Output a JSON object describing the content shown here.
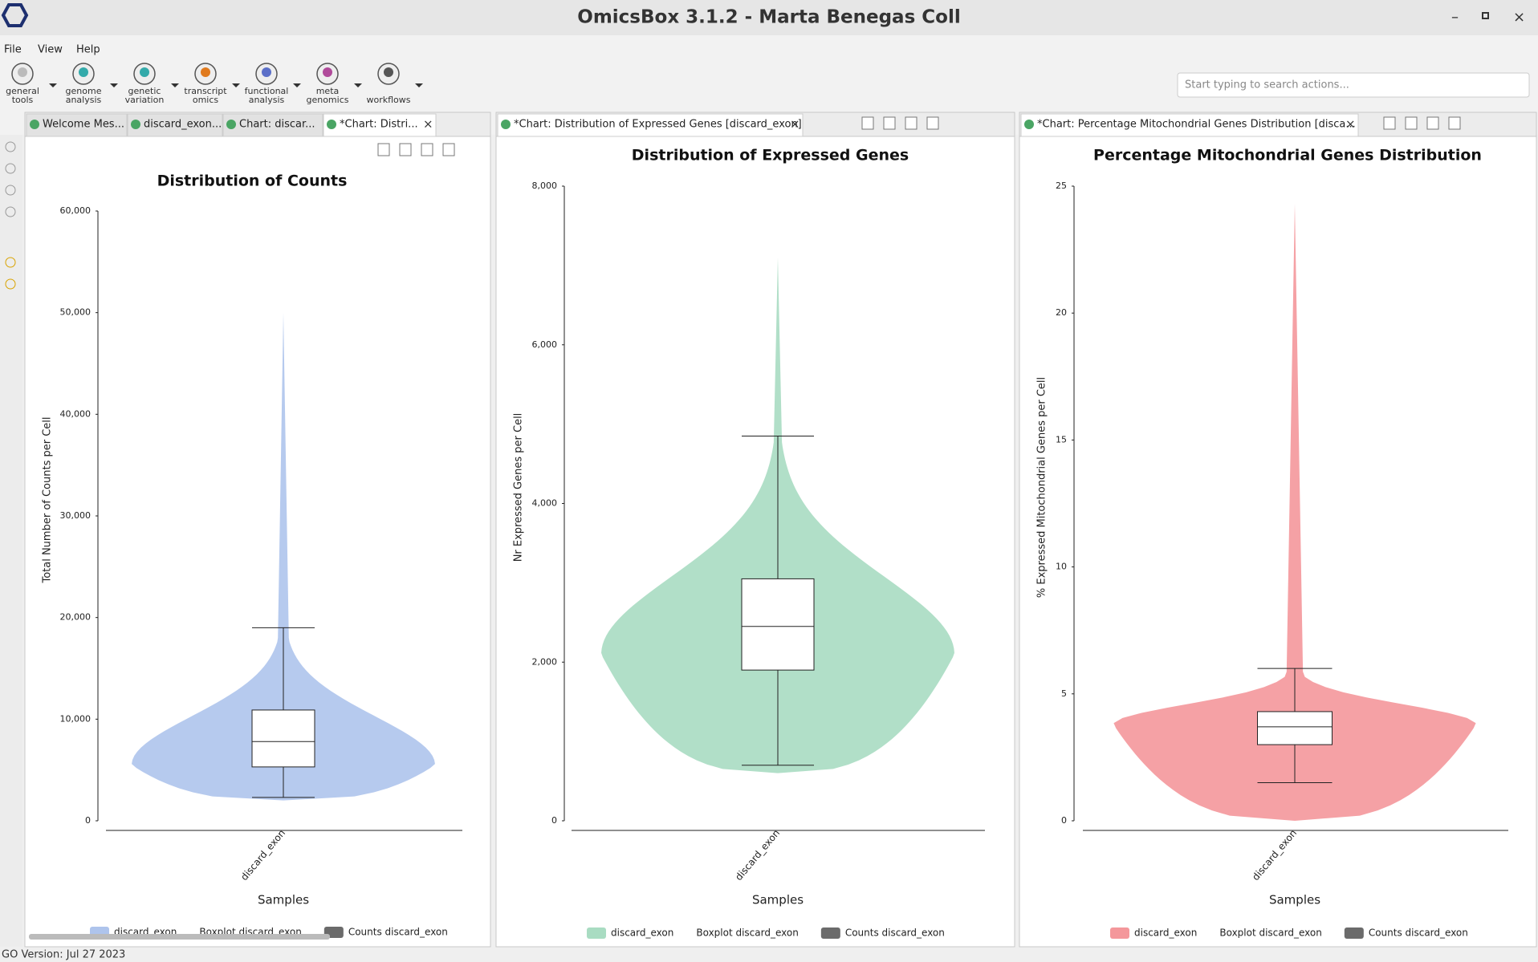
{
  "window": {
    "title": "OmicsBox 3.1.2 - Marta Benegas Coll"
  },
  "menu": [
    "File",
    "View",
    "Help"
  ],
  "toolbar": [
    [
      "general",
      "tools"
    ],
    [
      "genome",
      "analysis"
    ],
    [
      "genetic",
      "variation"
    ],
    [
      "transcript",
      "omics"
    ],
    [
      "functional",
      "analysis"
    ],
    [
      "meta",
      "genomics"
    ],
    [
      "workflows"
    ]
  ],
  "search_placeholder": "Start typing to search actions...",
  "panels": [
    {
      "tabs": [
        "Welcome Mes...",
        "discard_exon...",
        "Chart: discar...",
        "*Chart: Distri..."
      ]
    },
    {
      "tabs": [
        "*Chart: Distribution of Expressed Genes [discard_exon]"
      ]
    },
    {
      "tabs": [
        "*Chart: Percentage Mitochondrial Genes Distribution [disca..."
      ]
    }
  ],
  "status": "GO Version: Jul 27 2023",
  "chart_data": [
    {
      "type": "violin",
      "title": "Distribution of Counts",
      "y_label": "Total Number of Counts per Cell",
      "x_label": "Samples",
      "categories": [
        "discard_exon"
      ],
      "color": "#aec4ec",
      "values": {
        "min": 2000,
        "whisker_low": 2300,
        "q1": 5300,
        "mode": 5500,
        "median": 7800,
        "q3": 10900,
        "whisker_high": 19000,
        "max": 50000
      },
      "ylim": [
        0,
        60000
      ],
      "yticks": [
        0,
        {
          "value": 10000,
          "label": "10,000"
        },
        {
          "value": 20000,
          "label": "20,000"
        },
        {
          "value": 30000,
          "label": "30,000"
        },
        {
          "value": 40000,
          "label": "40,000"
        },
        {
          "value": 50000,
          "label": "50,000"
        },
        {
          "value": 60000,
          "label": "60,000"
        }
      ],
      "legend": [
        {
          "name": "discard_exon",
          "color": "#aec4ec"
        },
        {
          "name": "Boxplot discard_exon"
        },
        {
          "name": "Counts discard_exon",
          "color": "#6b6b6b"
        }
      ]
    },
    {
      "type": "violin",
      "title": "Distribution of Expressed Genes",
      "y_label": "Nr Expressed Genes per Cell",
      "x_label": "Samples",
      "categories": [
        "discard_exon"
      ],
      "color": "#a9dcc2",
      "values": {
        "min": 600,
        "whisker_low": 700,
        "q1": 1900,
        "mode": 2100,
        "median": 2450,
        "q3": 3050,
        "whisker_high": 4850,
        "max": 7100
      },
      "ylim": [
        0,
        8000
      ],
      "yticks": [
        0,
        {
          "value": 2000,
          "label": "2,000"
        },
        {
          "value": 4000,
          "label": "4,000"
        },
        {
          "value": 6000,
          "label": "6,000"
        },
        {
          "value": 8000,
          "label": "8,000"
        }
      ],
      "legend": [
        {
          "name": "discard_exon",
          "color": "#a9dcc2"
        },
        {
          "name": "Boxplot discard_exon"
        },
        {
          "name": "Counts discard_exon",
          "color": "#6b6b6b"
        }
      ]
    },
    {
      "type": "violin",
      "title": "Percentage Mitochondrial Genes Distribution",
      "y_label": "% Expressed Mitochondrial Genes per Cell",
      "x_label": "Samples",
      "categories": [
        "discard_exon"
      ],
      "color": "#f4979b",
      "values": {
        "min": 0,
        "whisker_low": 1.5,
        "q1": 3.0,
        "mode": 3.8,
        "median": 3.7,
        "q3": 4.3,
        "whisker_high": 6.0,
        "max": 24.3
      },
      "ylim": [
        0,
        25
      ],
      "yticks": [
        0,
        5,
        10,
        15,
        20,
        25
      ],
      "legend": [
        {
          "name": "discard_exon",
          "color": "#f4979b"
        },
        {
          "name": "Boxplot discard_exon"
        },
        {
          "name": "Counts discard_exon",
          "color": "#6b6b6b"
        }
      ]
    }
  ]
}
